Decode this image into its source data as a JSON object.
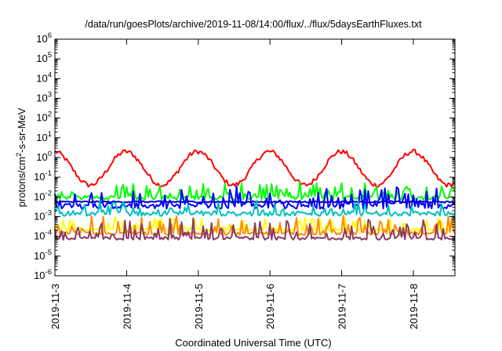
{
  "chart_data": {
    "type": "line",
    "title": "/data/run/goesPlots/archive/2019-11-08/14:00/flux/../flux/5daysEarthFluxes.txt",
    "xlabel": "Coordinated Universal Time (UTC)",
    "ylabel": "protons/cm2-s-sr-MeV",
    "yscale": "log",
    "ylim_exp": [
      -6,
      6
    ],
    "y_tick_exponents": [
      -6,
      -5,
      -4,
      -3,
      -2,
      -1,
      0,
      1,
      2,
      3,
      4,
      5,
      6
    ],
    "y_tick_base": "10",
    "xlim_days": [
      3.0,
      8.58
    ],
    "x_ticks": [
      {
        "day": 3,
        "label": "2019-11-3"
      },
      {
        "day": 4,
        "label": "2019-11-4"
      },
      {
        "day": 5,
        "label": "2019-11-5"
      },
      {
        "day": 6,
        "label": "2019-11-6"
      },
      {
        "day": 7,
        "label": "2019-11-7"
      },
      {
        "day": 8,
        "label": "2019-11-8"
      }
    ],
    "grid": false,
    "legend": "none",
    "series": [
      {
        "color": "#ff0000",
        "base_log": -0.55,
        "noise": 0.12,
        "spike_prob": 0.0,
        "spike": 0.0,
        "diurnal": 0.85,
        "phase": 0.74
      },
      {
        "color": "#00ff00",
        "base_log": -2.05,
        "noise": 0.1,
        "spike_prob": 0.45,
        "spike": 0.75,
        "diurnal": 0.0,
        "phase": 0.0
      },
      {
        "color": "#0000ff",
        "base_log": -2.45,
        "noise": 0.15,
        "spike_prob": 0.35,
        "spike": 0.9,
        "diurnal": 0.0,
        "phase": 0.0
      },
      {
        "color": "#0000cd",
        "base_log": -2.25,
        "noise": 0.04,
        "spike_prob": 0.0,
        "spike": 0.0,
        "diurnal": 0.0,
        "phase": 0.0
      },
      {
        "color": "#00c0c0",
        "base_log": -2.85,
        "noise": 0.12,
        "spike_prob": 0.3,
        "spike": 0.55,
        "diurnal": 0.0,
        "phase": 0.0
      },
      {
        "color": "#ffff00",
        "base_log": -3.65,
        "noise": 0.08,
        "spike_prob": 0.25,
        "spike": 0.6,
        "diurnal": 0.0,
        "phase": 0.0
      },
      {
        "color": "#ff8c00",
        "base_log": -3.85,
        "noise": 0.08,
        "spike_prob": 0.28,
        "spike": 0.9,
        "diurnal": 0.0,
        "phase": 0.0
      },
      {
        "color": "#8b3a62",
        "base_log": -4.1,
        "noise": 0.08,
        "spike_prob": 0.3,
        "spike": 0.95,
        "diurnal": 0.0,
        "phase": 0.0
      }
    ]
  }
}
